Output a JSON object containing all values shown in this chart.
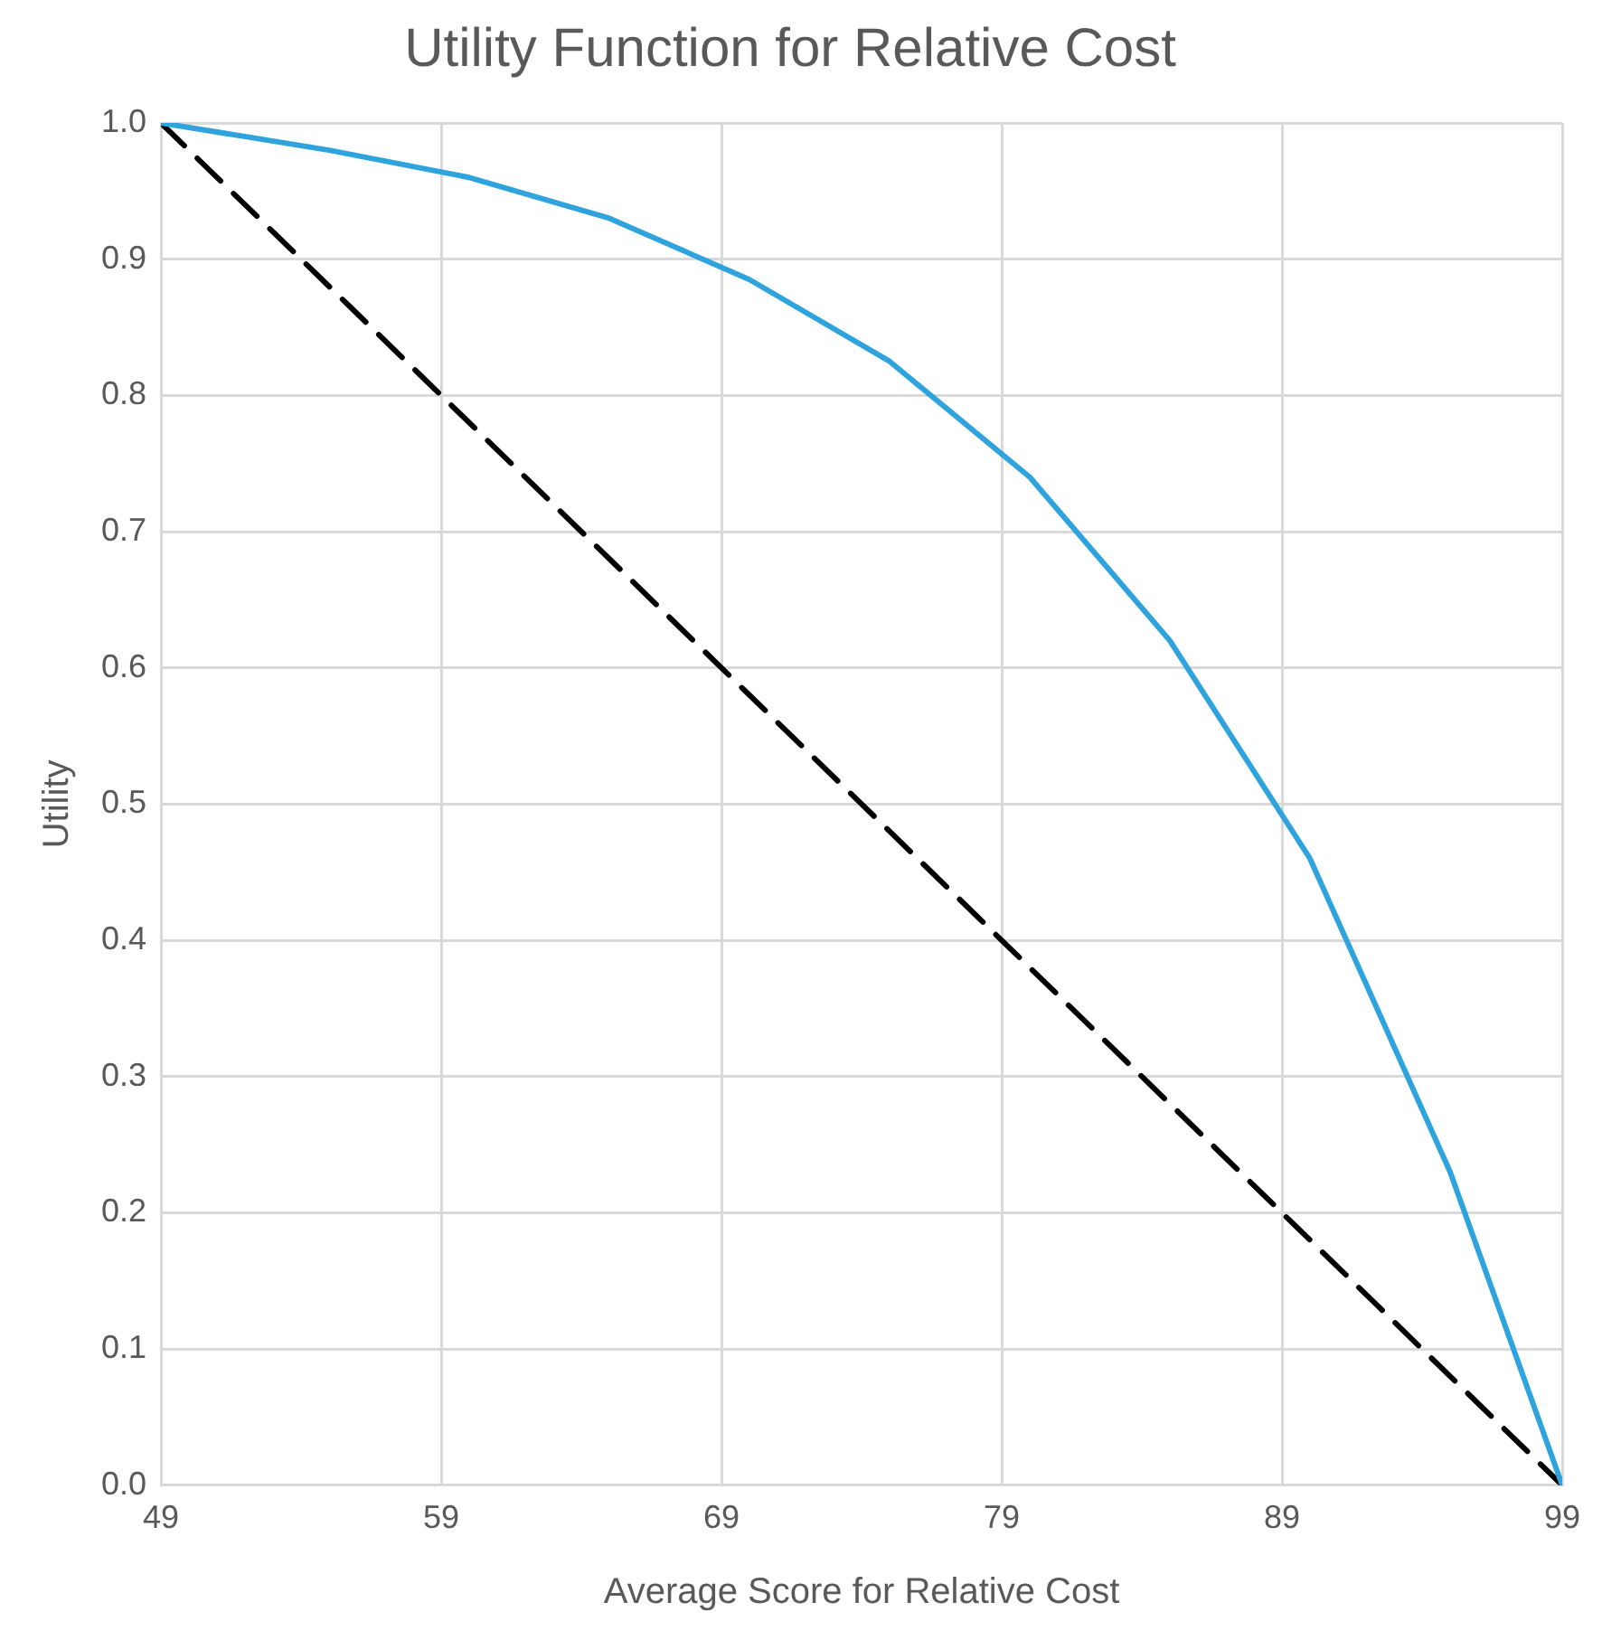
{
  "chart_data": {
    "type": "line",
    "title": "Utility Function for Relative Cost",
    "xlabel": "Average Score for Relative Cost",
    "ylabel": "Utility",
    "xlim": [
      49,
      99
    ],
    "xticks": [
      49,
      59,
      69,
      79,
      89,
      99
    ],
    "ylim": [
      0,
      1
    ],
    "yticks": [
      {
        "value": 0,
        "label": "0.0"
      },
      {
        "value": 0.1,
        "label": "0.1"
      },
      {
        "value": 0.2,
        "label": "0.2"
      },
      {
        "value": 0.3,
        "label": "0.3"
      },
      {
        "value": 0.4,
        "label": "0.4"
      },
      {
        "value": 0.5,
        "label": "0.5"
      },
      {
        "value": 0.6,
        "label": "0.6"
      },
      {
        "value": 0.7,
        "label": "0.7"
      },
      {
        "value": 0.8,
        "label": "0.8"
      },
      {
        "value": 0.9,
        "label": "0.9"
      },
      {
        "value": 1,
        "label": "1.0"
      }
    ],
    "grid": true,
    "legend": false,
    "marker": "none",
    "series": [
      {
        "color": "#2ea3dd",
        "line_style": "solid",
        "x": [
          49,
          55,
          60,
          65,
          70,
          75,
          80,
          85,
          90,
          95,
          99
        ],
        "values": [
          1.0,
          0.98,
          0.96,
          0.93,
          0.885,
          0.825,
          0.74,
          0.62,
          0.46,
          0.23,
          0
        ]
      },
      {
        "color": "#000000",
        "line_style": "dashed",
        "x": [
          49,
          99
        ],
        "values": [
          1,
          0
        ]
      }
    ]
  }
}
